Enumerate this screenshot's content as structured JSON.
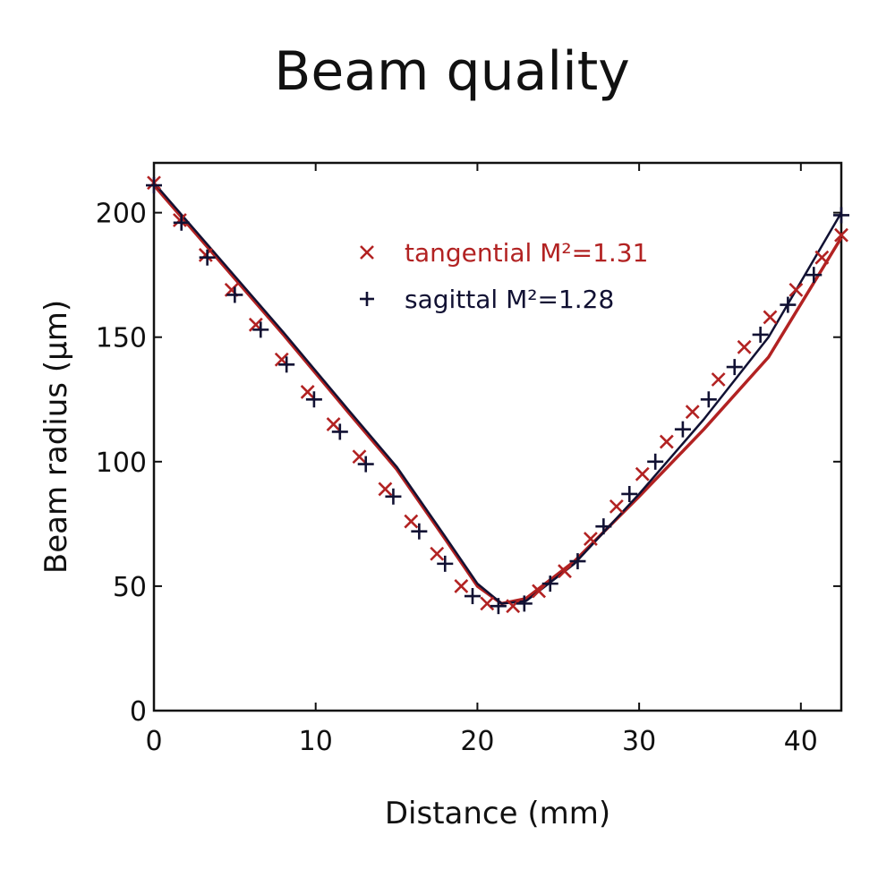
{
  "chart_data": {
    "type": "scatter",
    "title": "Beam quality",
    "xlabel": "Distance (mm)",
    "ylabel": "Beam radius (μm)",
    "xlim": [
      0,
      42.5
    ],
    "ylim": [
      0,
      220
    ],
    "xticks": [
      "0",
      "10",
      "20",
      "30",
      "40"
    ],
    "yticks": [
      "0",
      "50",
      "100",
      "150",
      "200"
    ],
    "grid": false,
    "legend_position": "top-center",
    "series": [
      {
        "name": "tangential M²=1.31",
        "marker": "x",
        "color": "#b22222",
        "x": [
          0,
          1.6,
          3.2,
          4.8,
          6.3,
          7.9,
          9.5,
          11.1,
          12.7,
          14.3,
          15.9,
          17.5,
          19.0,
          20.6,
          22.2,
          23.8,
          25.4,
          27.0,
          28.6,
          30.2,
          31.7,
          33.3,
          34.9,
          36.5,
          38.1,
          39.7,
          41.3,
          42.5
        ],
        "y": [
          212,
          197,
          183,
          169,
          155,
          141,
          128,
          115,
          102,
          89,
          76,
          63,
          50,
          43,
          42,
          48,
          56,
          69,
          82,
          95,
          108,
          120,
          133,
          146,
          158,
          169,
          182,
          191
        ],
        "fit": {
          "x": [
            0,
            4,
            8,
            12,
            15,
            18,
            20,
            21.5,
            23,
            26,
            30,
            34,
            38,
            42.5
          ],
          "y": [
            211,
            181,
            151,
            120,
            97,
            69,
            50,
            43,
            45,
            60,
            86,
            113,
            142,
            190
          ]
        }
      },
      {
        "name": "sagittal M²=1.28",
        "marker": "+",
        "color": "#111133",
        "x": [
          0,
          1.7,
          3.3,
          5.0,
          6.6,
          8.2,
          9.9,
          11.5,
          13.1,
          14.8,
          16.4,
          18.0,
          19.7,
          21.3,
          22.9,
          24.5,
          26.2,
          27.8,
          29.4,
          31.0,
          32.7,
          34.3,
          35.9,
          37.5,
          39.2,
          40.8,
          42.5
        ],
        "y": [
          211,
          196,
          182,
          167,
          153,
          139,
          125,
          112,
          99,
          86,
          72,
          59,
          46,
          42,
          43,
          51,
          60,
          74,
          87,
          100,
          113,
          125,
          138,
          151,
          163,
          175,
          199
        ],
        "fit": {
          "x": [
            0,
            4,
            8,
            12,
            15,
            18,
            20,
            21.5,
            23,
            26,
            30,
            34,
            38,
            42.5
          ],
          "y": [
            212,
            182,
            152,
            121,
            98,
            70,
            51,
            43,
            44,
            59,
            87,
            117,
            150,
            200
          ]
        }
      }
    ]
  }
}
